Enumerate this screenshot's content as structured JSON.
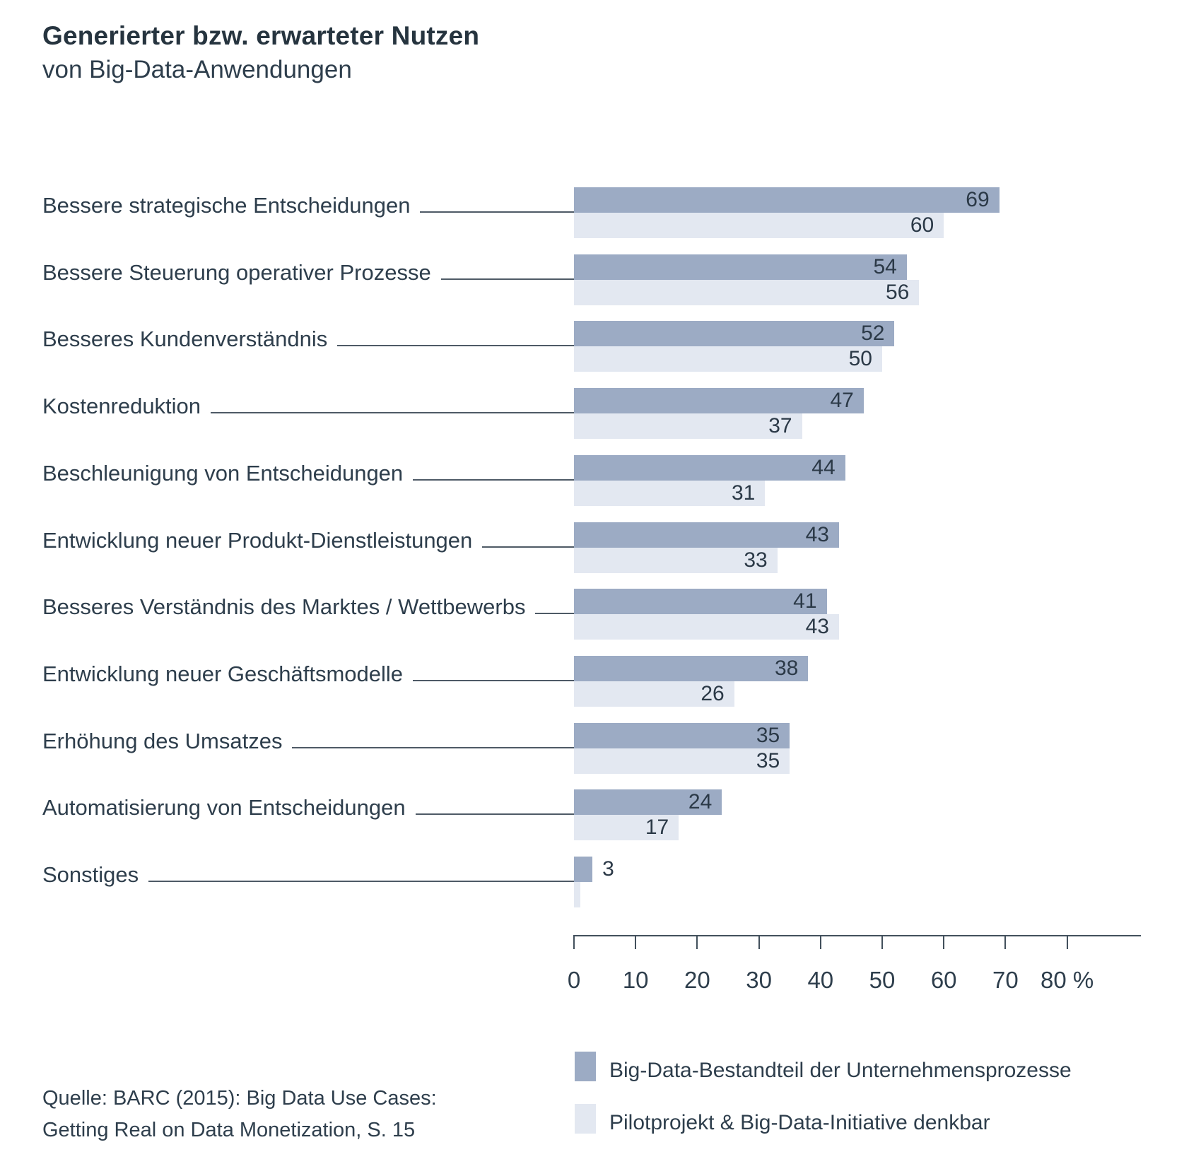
{
  "title": {
    "line1": "Generierter bzw. erwarteter Nutzen",
    "line2": "von Big-Data-Anwendungen"
  },
  "chart_data": {
    "type": "bar",
    "orientation": "horizontal",
    "unit": "%",
    "title": "Generierter bzw. erwarteter Nutzen von Big-Data-Anwendungen",
    "categories": [
      "Bessere strategische Entscheidungen",
      "Bessere Steuerung operativer Prozesse",
      "Besseres Kundenverständnis",
      "Kostenreduktion",
      "Beschleunigung von Entscheidungen",
      "Entwicklung neuer Produkt-Dienstleistungen",
      "Besseres Verständnis des Marktes / Wettbewerbs",
      "Entwicklung neuer Geschäftsmodelle",
      "Erhöhung des Umsatzes",
      "Automatisierung von Entscheidungen",
      "Sonstiges"
    ],
    "series": [
      {
        "name": "Big-Data-Bestandteil der Unternehmensprozesse",
        "color": "#9cabc4",
        "values": [
          69,
          54,
          52,
          47,
          44,
          43,
          41,
          38,
          35,
          24,
          3
        ],
        "value_labels": [
          "69",
          "54",
          "52",
          "47",
          "44",
          "43",
          "41",
          "38",
          "35",
          "24",
          "3"
        ]
      },
      {
        "name": "Pilotprojekt & Big-Data-Initiative denkbar",
        "color": "#e3e8f1",
        "values": [
          60,
          56,
          50,
          37,
          31,
          33,
          43,
          26,
          35,
          17,
          1
        ],
        "value_labels": [
          "60",
          "56",
          "50",
          "37",
          "31",
          "33",
          "43",
          "26",
          "35",
          "17",
          ""
        ]
      }
    ],
    "x_ticks": [
      0,
      10,
      20,
      30,
      40,
      50,
      60,
      70,
      80
    ],
    "x_tick_labels": [
      "0",
      "10",
      "20",
      "30",
      "40",
      "50",
      "60",
      "70",
      "80 %"
    ],
    "xlim": [
      0,
      92
    ],
    "grid": false,
    "legend_position": "bottom-right"
  },
  "legend": {
    "items": [
      {
        "label": "Big-Data-Bestandteil der Unternehmensprozesse",
        "color": "#9cabc4"
      },
      {
        "label": "Pilotprojekt & Big-Data-Initiative denkbar",
        "color": "#e3e8f1"
      }
    ]
  },
  "source": {
    "line1": "Quelle: BARC (2015): Big Data Use Cases:",
    "line2": "Getting Real on Data Monetization, S. 15"
  }
}
